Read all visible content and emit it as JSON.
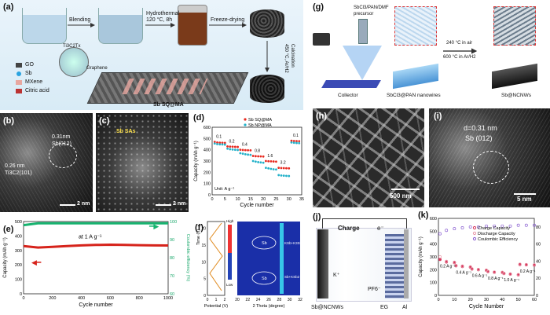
{
  "a": {
    "label": "(a)",
    "steps": [
      "Blending",
      "Hydrothermal\n120 °C, 8h",
      "Freeze-drying"
    ],
    "calcination": "Calcination\n450 °C, Ar/H2",
    "legend": [
      "GO",
      "Sb",
      "MXene",
      "Citric acid"
    ],
    "ti3c2tx": "Ti3C2Tx",
    "graphene": "Graphene",
    "product": "Sb SQ@MA"
  },
  "b": {
    "label": "(b)",
    "d1": "0.26 nm",
    "p1": "Ti3C2(101)",
    "d2": "0.31nm",
    "p2": "Sb(012)",
    "scale": "2 nm"
  },
  "c": {
    "label": "(c)",
    "sas": "Sb SAs",
    "scale": "2 nm"
  },
  "d": {
    "label": "(d)",
    "ylabel": "Capacity (mAh g⁻¹)",
    "xlabel": "Cycle number",
    "unit": "Unit: A g⁻¹",
    "legend": [
      "Sb SQ@MA",
      "Sb NP@MA"
    ],
    "rate_labels": [
      "0.1",
      "0.2",
      "0.4",
      "0.8",
      "1.6",
      "3.2",
      "0.1"
    ],
    "xticks": [
      "0",
      "5",
      "10",
      "15",
      "20",
      "25",
      "30",
      "35"
    ],
    "yticks": [
      "0",
      "100",
      "200",
      "300",
      "400",
      "500",
      "600"
    ]
  },
  "e": {
    "label": "(e)",
    "ylabel": "Capacity (mAh g⁻¹)",
    "y2label": "Coulombic efficiency (%)",
    "xlabel": "Cycle number",
    "note": "at 1 A g⁻¹",
    "xticks": [
      "0",
      "200",
      "400",
      "600",
      "800",
      "1000"
    ],
    "yticks": [
      "0",
      "100",
      "200",
      "300",
      "400",
      "500"
    ],
    "y2ticks": [
      "60",
      "70",
      "80",
      "90",
      "100"
    ]
  },
  "f": {
    "label": "(f)",
    "time_label": "Time (h)",
    "potential_label": "Potential (V)",
    "tticks": [
      "0",
      "5",
      "10",
      "15",
      "20"
    ],
    "pticks": [
      "0",
      "1",
      "2"
    ],
    "theta_label": "2 Theta (degree)",
    "thticks": [
      "20",
      "22",
      "24",
      "26",
      "28",
      "30",
      "32"
    ],
    "high": "High",
    "low": "Low",
    "sb": "Sb",
    "k": "KSb+K3Sb",
    "k2": "Sb+KSb2"
  },
  "g": {
    "label": "(g)",
    "precursor": "SbCl3/PAN/DMF\nprecursor",
    "collector": "Collector",
    "nanowires": "SbCl3@PAN nanowires",
    "t1": "240 °C in air",
    "t2": "600 °C in Ar/H2",
    "product": "Sb@NCNWs"
  },
  "h": {
    "label": "(h)",
    "scale": "500 nm"
  },
  "i": {
    "label": "(i)",
    "d": "d=0.31 nm",
    "plane": "Sb (012)",
    "scale": "5 nm"
  },
  "j": {
    "label": "(j)",
    "charge": "Charge",
    "e": "e⁻",
    "k": "K⁺",
    "pf6": "PF6⁻",
    "anode": "Sb@NCNWs",
    "eg": "EG",
    "al": "Al"
  },
  "k": {
    "label": "(k)",
    "ylabel": "Capacity (mAh g⁻¹)",
    "xlabel": "Cycle Number",
    "legend": [
      "Charge Capacity",
      "Discharge Capacity",
      "Coulombic Efficiency"
    ],
    "rate_labels": [
      "0.2 A g⁻¹",
      "0.4 A g⁻¹",
      "0.6 A g⁻¹",
      "0.8 A g⁻¹",
      "1.0 A g⁻¹",
      "0.2 A g⁻¹"
    ],
    "xticks": [
      "0",
      "10",
      "20",
      "30",
      "40",
      "50",
      "60"
    ],
    "yticks": [
      "0",
      "100",
      "200",
      "300",
      "400",
      "500",
      "600"
    ],
    "y2ticks": [
      "0",
      "20",
      "40",
      "60",
      "80"
    ]
  },
  "chart_data": [
    {
      "type": "line",
      "panel": "d",
      "xlabel": "Cycle number",
      "ylabel": "Capacity (mAh g⁻¹)",
      "xlim": [
        0,
        35
      ],
      "ylim": [
        0,
        600
      ],
      "series": [
        {
          "name": "Sb SQ@MA",
          "x": [
            1,
            2,
            3,
            4,
            5,
            6,
            7,
            8,
            9,
            10,
            11,
            12,
            13,
            14,
            15,
            16,
            17,
            18,
            19,
            20,
            21,
            22,
            23,
            24,
            25,
            26,
            27,
            28,
            29,
            30,
            31,
            32,
            33,
            34
          ],
          "values": [
            470,
            465,
            463,
            462,
            461,
            430,
            428,
            427,
            426,
            425,
            400,
            398,
            397,
            396,
            395,
            345,
            343,
            342,
            341,
            340,
            300,
            298,
            297,
            296,
            295,
            240,
            238,
            237,
            236,
            235,
            480,
            478,
            477,
            476
          ]
        },
        {
          "name": "Sb NP@MA",
          "x": [
            1,
            2,
            3,
            4,
            5,
            6,
            7,
            8,
            9,
            10,
            11,
            12,
            13,
            14,
            15,
            16,
            17,
            18,
            19,
            20,
            21,
            22,
            23,
            24,
            25,
            26,
            27,
            28,
            29,
            30,
            31,
            32,
            33,
            34
          ],
          "values": [
            455,
            450,
            448,
            447,
            446,
            410,
            405,
            402,
            400,
            398,
            370,
            365,
            360,
            357,
            355,
            300,
            295,
            290,
            288,
            285,
            240,
            235,
            230,
            227,
            225,
            175,
            172,
            170,
            168,
            167,
            465,
            462,
            460,
            459
          ]
        }
      ]
    },
    {
      "type": "line",
      "panel": "e",
      "xlabel": "Cycle number",
      "ylabel": "Capacity (mAh g⁻¹)",
      "xlim": [
        0,
        1000
      ],
      "ylim": [
        0,
        500
      ],
      "series": [
        {
          "name": "Capacity",
          "x": [
            0,
            100,
            200,
            300,
            400,
            500,
            600,
            700,
            800,
            900,
            1000
          ],
          "values": [
            330,
            320,
            325,
            330,
            335,
            338,
            340,
            338,
            336,
            335,
            334
          ]
        },
        {
          "name": "Coulombic efficiency",
          "x": [
            0,
            100,
            200,
            300,
            400,
            500,
            600,
            700,
            800,
            900,
            1000
          ],
          "values": [
            98,
            99,
            99,
            99,
            99,
            99,
            99,
            99,
            99,
            99,
            99
          ]
        }
      ]
    },
    {
      "type": "scatter",
      "panel": "k",
      "xlabel": "Cycle Number",
      "ylabel": "Capacity (mAh g⁻¹)",
      "xlim": [
        0,
        60
      ],
      "ylim": [
        0,
        600
      ],
      "series": [
        {
          "name": "Charge Capacity",
          "x": [
            1,
            5,
            10,
            11,
            15,
            20,
            21,
            25,
            30,
            31,
            35,
            40,
            41,
            45,
            50,
            51,
            55,
            60
          ],
          "values": [
            280,
            260,
            255,
            230,
            225,
            220,
            205,
            200,
            195,
            185,
            180,
            178,
            170,
            165,
            160,
            240,
            238,
            236
          ]
        },
        {
          "name": "Discharge Capacity",
          "x": [
            1,
            5,
            10,
            11,
            15,
            20,
            21,
            25,
            30,
            31,
            35,
            40,
            41,
            45,
            50,
            51,
            55,
            60
          ],
          "values": [
            300,
            265,
            258,
            233,
            228,
            222,
            207,
            202,
            197,
            187,
            182,
            180,
            172,
            167,
            162,
            243,
            240,
            238
          ]
        },
        {
          "name": "Coulombic Efficiency",
          "x": [
            1,
            5,
            10,
            15,
            20,
            25,
            30,
            35,
            40,
            45,
            50,
            55,
            60
          ],
          "values": [
            72,
            76,
            78,
            79,
            80,
            80,
            81,
            81,
            81,
            81,
            82,
            82,
            82
          ]
        }
      ]
    }
  ]
}
